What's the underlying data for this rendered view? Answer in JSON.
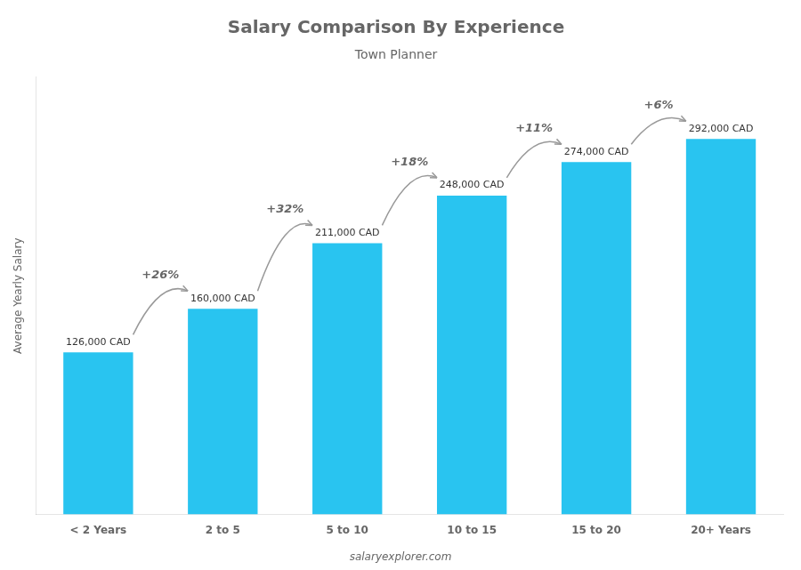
{
  "chart_data": {
    "type": "bar",
    "title": "Salary Comparison By Experience",
    "subtitle": "Town Planner",
    "categories": [
      "< 2 Years",
      "2 to 5",
      "5 to 10",
      "10 to 15",
      "15 to 20",
      "20+ Years"
    ],
    "values": [
      126000,
      160000,
      211000,
      248000,
      274000,
      292000
    ],
    "value_labels": [
      "126,000 CAD",
      "160,000 CAD",
      "211,000 CAD",
      "248,000 CAD",
      "274,000 CAD",
      "292,000 CAD"
    ],
    "data_labels": true,
    "annotations": [
      "+26%",
      "+32%",
      "+18%",
      "+11%",
      "+6%"
    ],
    "footer": "salaryexplorer.com",
    "y_label": "Average Yearly Salary",
    "color": "#29c4f0",
    "ylim": [
      0,
      340000
    ],
    "grid": false,
    "tick_labels": "x"
  }
}
